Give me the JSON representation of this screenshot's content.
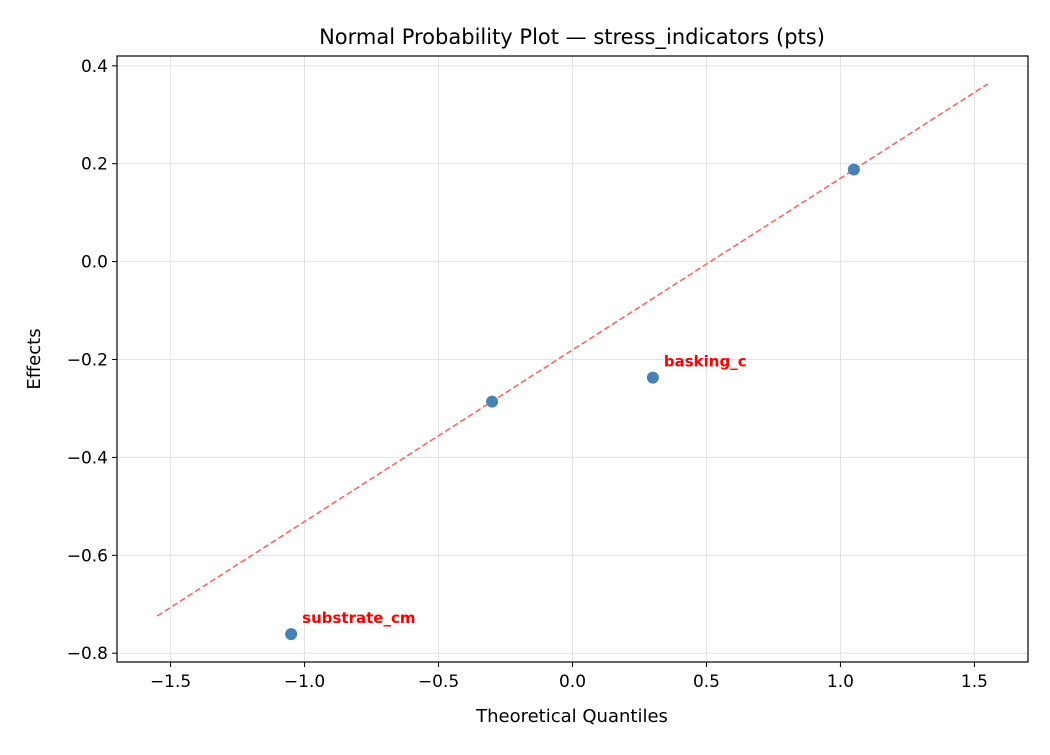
{
  "chart_data": {
    "type": "scatter",
    "title": "Normal Probability Plot — stress_indicators (pts)",
    "xlabel": "Theoretical Quantiles",
    "ylabel": "Effects",
    "xlim": [
      -1.7,
      1.7
    ],
    "ylim": [
      -0.818,
      0.42
    ],
    "xticks": [
      -1.5,
      -1.0,
      -0.5,
      0.0,
      0.5,
      1.0,
      1.5
    ],
    "xtick_labels": [
      "−1.5",
      "−1.0",
      "−0.5",
      "0.0",
      "0.5",
      "1.0",
      "1.5"
    ],
    "yticks": [
      -0.8,
      -0.6,
      -0.4,
      -0.2,
      0.0,
      0.2,
      0.4
    ],
    "ytick_labels": [
      "−0.8",
      "−0.6",
      "−0.4",
      "−0.2",
      "0.0",
      "0.2",
      "0.4"
    ],
    "grid": true,
    "points": [
      {
        "x": -1.05,
        "y": -0.761,
        "label": "substrate_cm"
      },
      {
        "x": -0.3,
        "y": -0.286,
        "label": ""
      },
      {
        "x": 0.3,
        "y": -0.237,
        "label": "basking_c"
      },
      {
        "x": 1.05,
        "y": 0.188,
        "label": ""
      }
    ],
    "reference_line": {
      "x": [
        -1.55,
        1.55
      ],
      "y": [
        -0.724,
        0.363
      ],
      "style": "dashed"
    },
    "colors": {
      "points": "#4682b4",
      "line": "#ff6666",
      "labels": "#ff0000"
    }
  }
}
